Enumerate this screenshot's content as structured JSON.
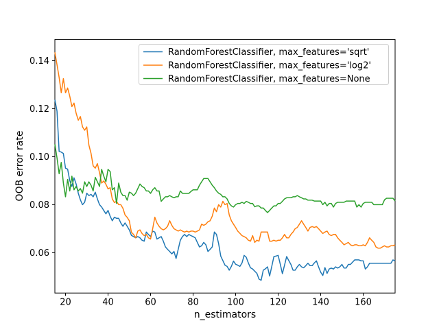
{
  "figure": {
    "background": "#ffffff"
  },
  "chart_data": {
    "type": "line",
    "title": "",
    "xlabel": "n_estimators",
    "ylabel": "OOB error rate",
    "xlim": [
      15,
      175
    ],
    "ylim": [
      0.0432,
      0.1488
    ],
    "xticks": [
      20,
      40,
      60,
      80,
      100,
      120,
      140,
      160
    ],
    "xtick_labels": [
      "20",
      "40",
      "60",
      "80",
      "100",
      "120",
      "140",
      "160"
    ],
    "yticks": [
      0.06,
      0.08,
      0.1,
      0.12,
      0.14
    ],
    "ytick_labels": [
      "0.06",
      "0.08",
      "0.10",
      "0.12",
      "0.14"
    ],
    "grid": false,
    "legend_position": "upper center",
    "x_start": 15,
    "x_step": 1,
    "series": [
      {
        "name": "RandomForestClassifier, max_features='sqrt'",
        "color": "#1f77b4",
        "values": [
          0.1237,
          0.119,
          0.1022,
          0.1019,
          0.1013,
          0.0952,
          0.0948,
          0.09,
          0.0876,
          0.0912,
          0.0886,
          0.0848,
          0.082,
          0.08,
          0.081,
          0.0848,
          0.0838,
          0.0843,
          0.0833,
          0.0852,
          0.0824,
          0.08,
          0.079,
          0.0776,
          0.0762,
          0.0776,
          0.0752,
          0.0733,
          0.0748,
          0.0743,
          0.0743,
          0.0724,
          0.071,
          0.0724,
          0.071,
          0.0695,
          0.0672,
          0.0667,
          0.0662,
          0.0667,
          0.0662,
          0.0652,
          0.0648,
          0.0686,
          0.0676,
          0.0667,
          0.069,
          0.0686,
          0.0657,
          0.0662,
          0.0667,
          0.0648,
          0.0624,
          0.0614,
          0.0605,
          0.0595,
          0.0605,
          0.0576,
          0.0614,
          0.0652,
          0.0667,
          0.0676,
          0.0667,
          0.0676,
          0.0671,
          0.0667,
          0.0662,
          0.0643,
          0.0624,
          0.0629,
          0.0643,
          0.0633,
          0.0605,
          0.0614,
          0.0624,
          0.0686,
          0.0676,
          0.0638,
          0.0586,
          0.0567,
          0.0548,
          0.0543,
          0.0527,
          0.0543,
          0.0565,
          0.0552,
          0.0548,
          0.0543,
          0.0557,
          0.0589,
          0.0581,
          0.0557,
          0.0537,
          0.0532,
          0.0523,
          0.0514,
          0.049,
          0.0485,
          0.0527,
          0.0533,
          0.0541,
          0.0503,
          0.0543,
          0.0584,
          0.0586,
          0.0589,
          0.0552,
          0.0513,
          0.0548,
          0.0584,
          0.0567,
          0.0551,
          0.0527,
          0.0527,
          0.0541,
          0.0551,
          0.0541,
          0.0537,
          0.0546,
          0.0556,
          0.0546,
          0.0546,
          0.0557,
          0.0566,
          0.0541,
          0.0519,
          0.0505,
          0.0538,
          0.0514,
          0.0532,
          0.0536,
          0.0532,
          0.0541,
          0.0536,
          0.0541,
          0.0551,
          0.0536,
          0.0536,
          0.0551,
          0.0551,
          0.0561,
          0.057,
          0.057,
          0.057,
          0.0566,
          0.0566,
          0.0532,
          0.0541,
          0.0556,
          0.0556,
          0.0556,
          0.0556,
          0.0556,
          0.0556,
          0.0556,
          0.0556,
          0.0556,
          0.0556,
          0.0556,
          0.057,
          0.0566
        ]
      },
      {
        "name": "RandomForestClassifier, max_features='log2'",
        "color": "#ff7f0e",
        "values": [
          0.1435,
          0.1383,
          0.133,
          0.1266,
          0.1325,
          0.1266,
          0.1286,
          0.1252,
          0.1209,
          0.1223,
          0.1181,
          0.1152,
          0.1167,
          0.1124,
          0.111,
          0.1124,
          0.1048,
          0.1014,
          0.0962,
          0.0952,
          0.0971,
          0.0933,
          0.089,
          0.0899,
          0.0885,
          0.0866,
          0.0871,
          0.0824,
          0.0809,
          0.0814,
          0.08,
          0.08,
          0.0785,
          0.0757,
          0.0747,
          0.0733,
          0.0685,
          0.0676,
          0.0662,
          0.069,
          0.0695,
          0.068,
          0.0671,
          0.0676,
          0.0662,
          0.0657,
          0.07,
          0.0748,
          0.0724,
          0.071,
          0.07,
          0.0695,
          0.07,
          0.071,
          0.0733,
          0.0714,
          0.07,
          0.0695,
          0.069,
          0.0695,
          0.069,
          0.0686,
          0.069,
          0.0686,
          0.069,
          0.069,
          0.0686,
          0.069,
          0.0695,
          0.0719,
          0.0714,
          0.0719,
          0.0729,
          0.0733,
          0.0752,
          0.0786,
          0.0771,
          0.08,
          0.079,
          0.0814,
          0.08,
          0.0805,
          0.0757,
          0.0733,
          0.0719,
          0.0705,
          0.069,
          0.0681,
          0.0671,
          0.0667,
          0.0662,
          0.0652,
          0.0648,
          0.0671,
          0.0643,
          0.0652,
          0.0648,
          0.0686,
          0.0686,
          0.0686,
          0.0686,
          0.0648,
          0.0648,
          0.0652,
          0.0648,
          0.0652,
          0.0652,
          0.0662,
          0.0676,
          0.0662,
          0.0662,
          0.0676,
          0.0686,
          0.07,
          0.0705,
          0.0719,
          0.0733,
          0.0719,
          0.0705,
          0.069,
          0.0705,
          0.0709,
          0.0705,
          0.0709,
          0.07,
          0.069,
          0.068,
          0.0686,
          0.069,
          0.0676,
          0.0671,
          0.0676,
          0.0676,
          0.0662,
          0.0652,
          0.0643,
          0.0633,
          0.0638,
          0.0643,
          0.0633,
          0.0629,
          0.0633,
          0.0633,
          0.0629,
          0.0629,
          0.0633,
          0.0629,
          0.0643,
          0.0662,
          0.0652,
          0.0643,
          0.0624,
          0.0619,
          0.0619,
          0.0624,
          0.0629,
          0.0624,
          0.0624,
          0.0629,
          0.0629,
          0.0633
        ]
      },
      {
        "name": "RandomForestClassifier, max_features=None",
        "color": "#2ca02c",
        "values": [
          0.1052,
          0.0995,
          0.0929,
          0.0976,
          0.089,
          0.0833,
          0.0905,
          0.0857,
          0.0919,
          0.0862,
          0.0876,
          0.0857,
          0.0867,
          0.0848,
          0.0895,
          0.0876,
          0.0895,
          0.0881,
          0.0857,
          0.0914,
          0.0895,
          0.0876,
          0.0947,
          0.0919,
          0.0895,
          0.0947,
          0.0938,
          0.0862,
          0.0871,
          0.0805,
          0.089,
          0.0852,
          0.0838,
          0.0838,
          0.0819,
          0.0852,
          0.0848,
          0.0838,
          0.0848,
          0.0867,
          0.0886,
          0.0876,
          0.0871,
          0.0857,
          0.0857,
          0.0847,
          0.0862,
          0.0871,
          0.0857,
          0.0857,
          0.0814,
          0.0824,
          0.0833,
          0.0833,
          0.0838,
          0.0833,
          0.0829,
          0.0833,
          0.0833,
          0.0857,
          0.0847,
          0.0847,
          0.0847,
          0.0847,
          0.0855,
          0.0862,
          0.0862,
          0.0862,
          0.0881,
          0.0895,
          0.0909,
          0.0909,
          0.0909,
          0.0895,
          0.0881,
          0.0871,
          0.0857,
          0.0848,
          0.0843,
          0.0833,
          0.0833,
          0.0824,
          0.0805,
          0.0795,
          0.079,
          0.08,
          0.0805,
          0.0805,
          0.081,
          0.0805,
          0.0814,
          0.081,
          0.0805,
          0.0805,
          0.0791,
          0.0795,
          0.0795,
          0.0786,
          0.0786,
          0.0776,
          0.0767,
          0.0776,
          0.0786,
          0.0795,
          0.0795,
          0.0805,
          0.0805,
          0.0814,
          0.0824,
          0.0829,
          0.0829,
          0.0829,
          0.0833,
          0.0833,
          0.0838,
          0.0833,
          0.0829,
          0.0824,
          0.0824,
          0.0819,
          0.0819,
          0.0819,
          0.0815,
          0.0815,
          0.0815,
          0.0815,
          0.08,
          0.081,
          0.0795,
          0.0805,
          0.0805,
          0.079,
          0.0805,
          0.081,
          0.081,
          0.081,
          0.081,
          0.0815,
          0.0815,
          0.0815,
          0.0815,
          0.0815,
          0.079,
          0.08,
          0.079,
          0.0805,
          0.081,
          0.081,
          0.081,
          0.081,
          0.08,
          0.08,
          0.08,
          0.08,
          0.08,
          0.082,
          0.0827,
          0.0827,
          0.0827,
          0.0827,
          0.0815
        ]
      }
    ]
  }
}
